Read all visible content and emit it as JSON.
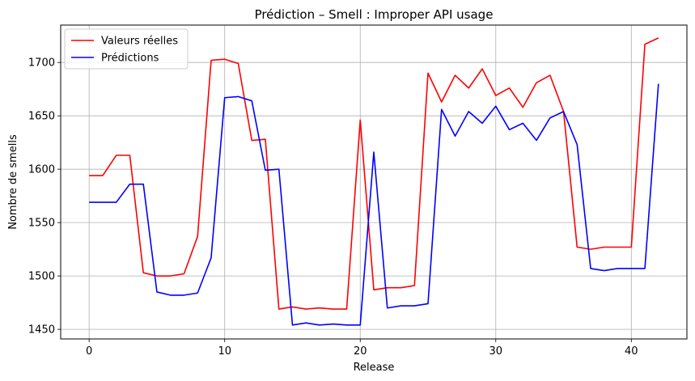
{
  "chart_data": {
    "type": "line",
    "title": "Prédiction – Smell : Improper API usage",
    "xlabel": "Release",
    "ylabel": "Nombre de smells",
    "xlim": [
      -2.1,
      44.1
    ],
    "ylim": [
      1441,
      1735
    ],
    "xticks": [
      0,
      10,
      20,
      30,
      40
    ],
    "yticks": [
      1450,
      1500,
      1550,
      1600,
      1650,
      1700
    ],
    "grid": true,
    "legend_position": "top-left",
    "x": [
      0,
      1,
      2,
      3,
      4,
      5,
      6,
      7,
      8,
      9,
      10,
      11,
      12,
      13,
      14,
      15,
      16,
      17,
      18,
      19,
      20,
      21,
      22,
      23,
      24,
      25,
      26,
      27,
      28,
      29,
      30,
      31,
      32,
      33,
      34,
      35,
      36,
      37,
      38,
      39,
      40,
      41,
      42
    ],
    "series": [
      {
        "name": "Valeurs réelles",
        "color": "#ff0000",
        "values": [
          1594,
          1594,
          1613,
          1613,
          1503,
          1500,
          1500,
          1502,
          1537,
          1702,
          1703,
          1699,
          1627,
          1628,
          1469,
          1471,
          1469,
          1470,
          1469,
          1469,
          1646,
          1487,
          1489,
          1489,
          1491,
          1690,
          1663,
          1688,
          1676,
          1694,
          1669,
          1676,
          1658,
          1681,
          1688,
          1654,
          1527,
          1525,
          1527,
          1527,
          1527,
          1717,
          1723
        ]
      },
      {
        "name": "Prédictions",
        "color": "#0000ff",
        "values": [
          1569,
          1569,
          1569,
          1586,
          1586,
          1485,
          1482,
          1482,
          1484,
          1517,
          1667,
          1668,
          1664,
          1599,
          1600,
          1454,
          1456,
          1454,
          1455,
          1454,
          1454,
          1616,
          1470,
          1472,
          1472,
          1474,
          1656,
          1631,
          1654,
          1643,
          1659,
          1637,
          1643,
          1627,
          1648,
          1654,
          1623,
          1507,
          1505,
          1507,
          1507,
          1507,
          1680
        ]
      }
    ]
  }
}
